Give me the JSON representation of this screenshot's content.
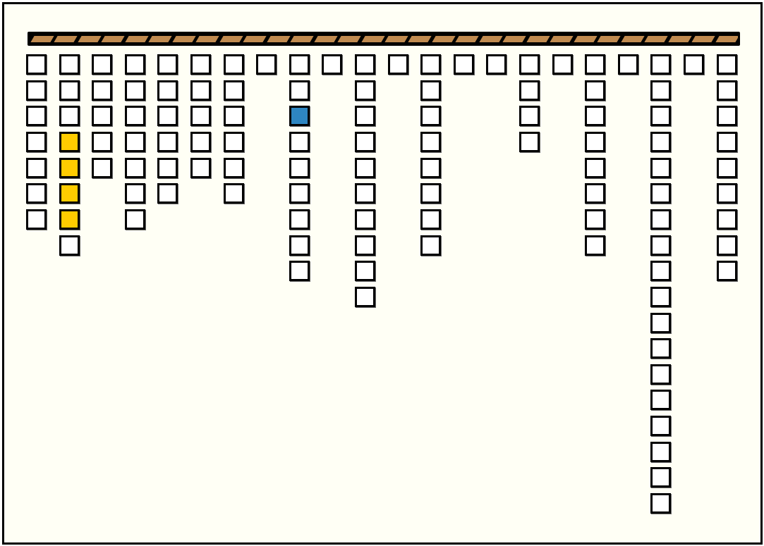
{
  "game": {
    "colors": {
      "background": "#fffff5",
      "cell_empty": "#ffffff",
      "cell_border": "#000000",
      "rail": "#c08a50",
      "highlight_yellow": "#ffcc00",
      "highlight_blue": "#2e86c1"
    },
    "rail_segments": 30,
    "column_heights": [
      7,
      8,
      5,
      7,
      6,
      5,
      6,
      1,
      9,
      1,
      10,
      1,
      8,
      1,
      1,
      4,
      1,
      8,
      1,
      18,
      1,
      9
    ],
    "highlighted_cells": [
      {
        "column": 2,
        "row": 4,
        "color": "yellow"
      },
      {
        "column": 2,
        "row": 5,
        "color": "yellow"
      },
      {
        "column": 2,
        "row": 6,
        "color": "yellow"
      },
      {
        "column": 2,
        "row": 7,
        "color": "yellow"
      },
      {
        "column": 9,
        "row": 3,
        "color": "blue"
      }
    ]
  }
}
